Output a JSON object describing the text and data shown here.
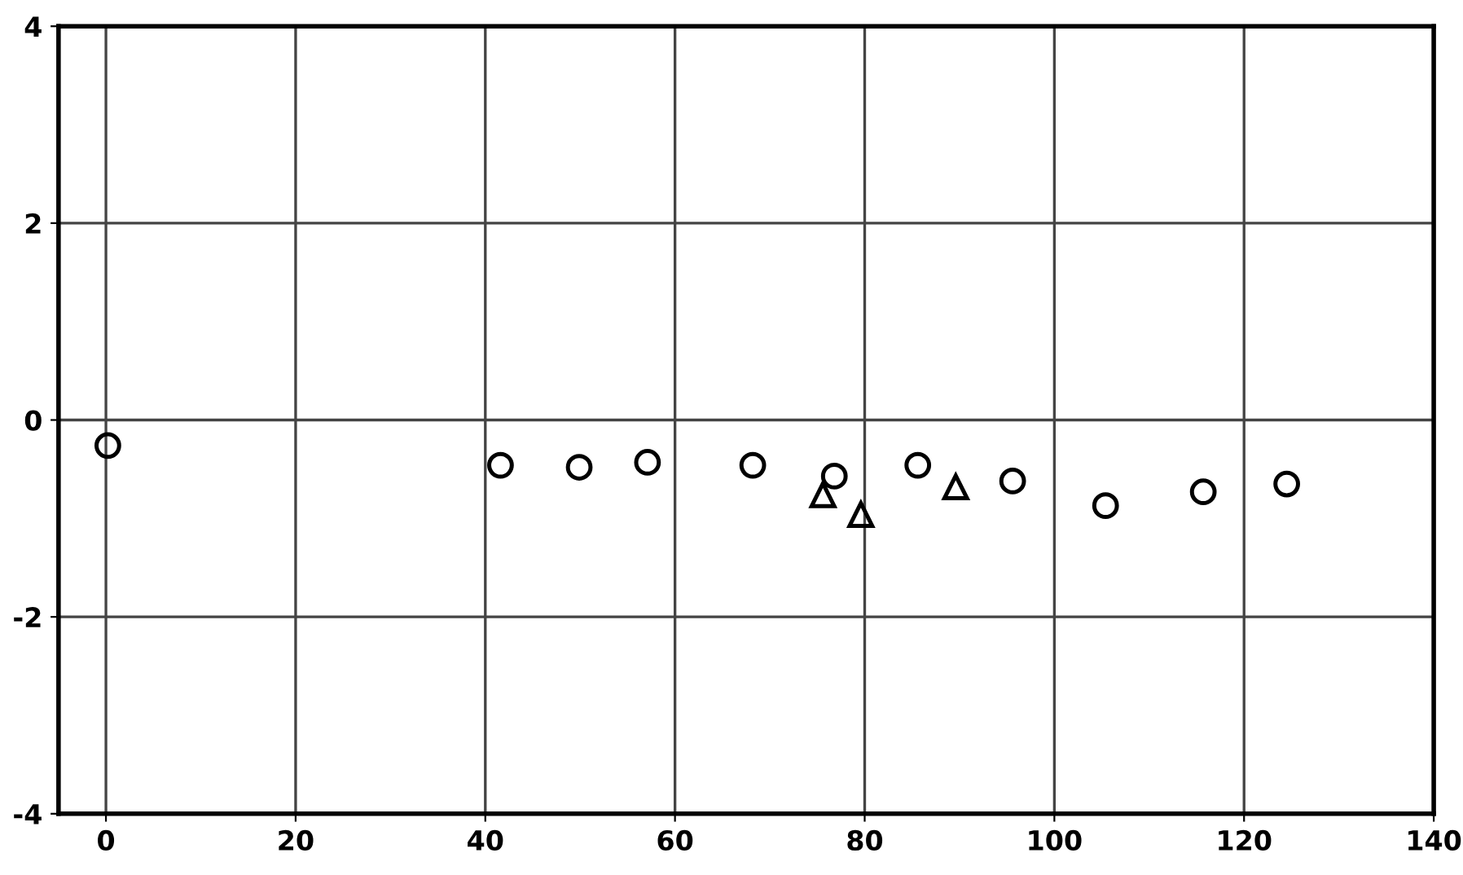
{
  "chart_data": {
    "type": "scatter",
    "xlim": [
      -5,
      140
    ],
    "ylim": [
      -4,
      4
    ],
    "xticks": [
      0,
      20,
      40,
      60,
      80,
      100,
      120,
      140
    ],
    "yticks": [
      -4,
      -2,
      0,
      2,
      4
    ],
    "grid": true,
    "legend": false,
    "series": [
      {
        "color": "#000000",
        "marker": "circle",
        "x": [
          0.2,
          41.6,
          49.9,
          57.1,
          68.2,
          76.8,
          85.6,
          95.6,
          105.4
        ],
        "values": [
          -0.26,
          -0.46,
          -0.48,
          -0.43,
          -0.46,
          -0.57,
          -0.46,
          -0.62,
          -0.87
        ]
      },
      {
        "color": "#000000",
        "marker": "triangle",
        "x": [
          75.6,
          79.6,
          89.6
        ],
        "values": [
          -0.76,
          -0.96,
          -0.68
        ]
      },
      {
        "color": "#000000",
        "marker": "circle",
        "x": [
          115.7,
          124.5
        ],
        "values": [
          -0.73,
          -0.65
        ]
      }
    ]
  }
}
